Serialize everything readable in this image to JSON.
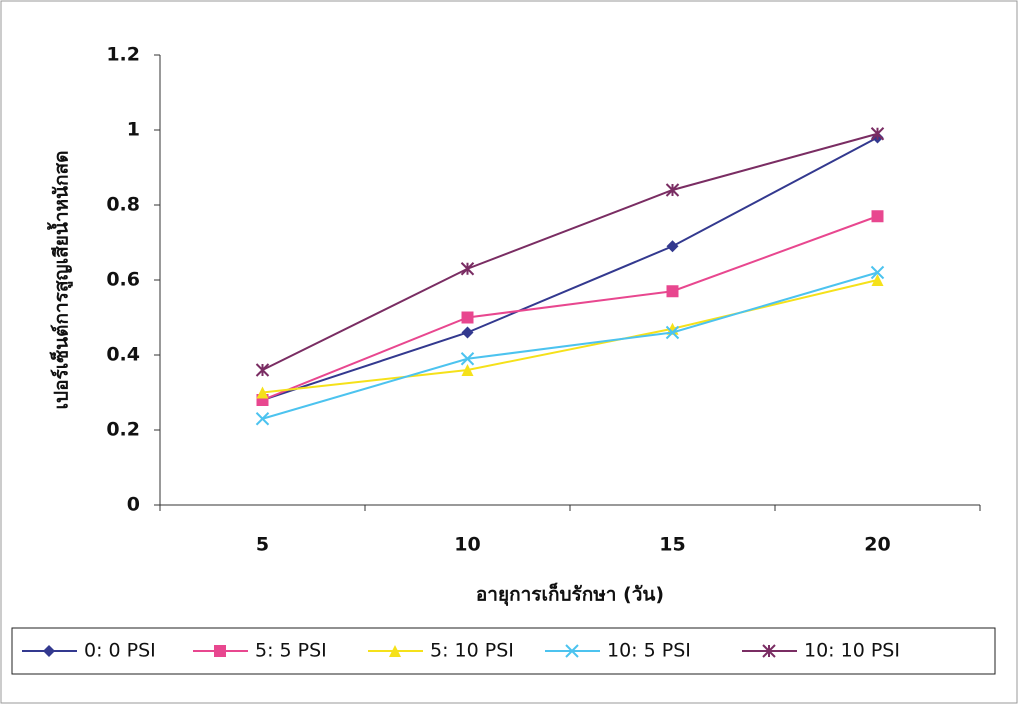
{
  "chart_data": {
    "type": "line",
    "y_label": "เปอร์เซ็นต์การสูญเสียน้ำหนักสด",
    "x_label": "อายุการเก็บรักษา (วัน)",
    "categories": [
      "5",
      "10",
      "15",
      "20"
    ],
    "series": [
      {
        "name": "0: 0 PSI",
        "color": "#33398f",
        "marker": "diamond",
        "values": [
          0.28,
          0.46,
          0.69,
          0.98
        ]
      },
      {
        "name": "5: 5 PSI",
        "color": "#e8478f",
        "marker": "square",
        "values": [
          0.28,
          0.5,
          0.57,
          0.77
        ]
      },
      {
        "name": "5: 10 PSI",
        "color": "#f5e11a",
        "marker": "triangle",
        "values": [
          0.3,
          0.36,
          0.47,
          0.6
        ]
      },
      {
        "name": "10: 5 PSI",
        "color": "#4cc3ef",
        "marker": "x",
        "values": [
          0.23,
          0.39,
          0.46,
          0.62
        ]
      },
      {
        "name": "10: 10 PSI",
        "color": "#7a2d63",
        "marker": "star",
        "values": [
          0.36,
          0.63,
          0.84,
          0.99
        ]
      }
    ],
    "ylim": [
      0,
      1.2
    ],
    "yticks": [
      0,
      0.2,
      0.4,
      0.6,
      0.8,
      1,
      1.2
    ],
    "grid": false,
    "legend": "bottom"
  }
}
